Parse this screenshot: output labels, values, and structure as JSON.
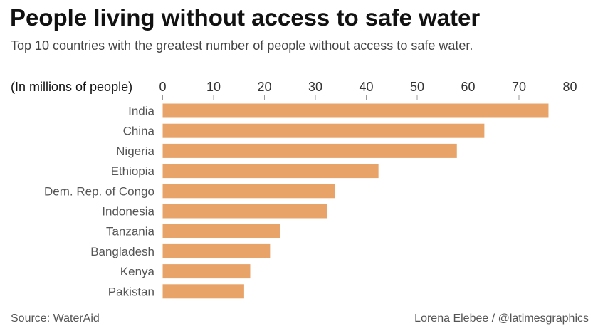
{
  "header": {
    "title": "People living without access to safe water",
    "subtitle": "Top 10 countries with the greatest number of people without access to safe water."
  },
  "footer": {
    "source": "Source: WaterAid",
    "credit": "Lorena Elebee / @latimesgraphics"
  },
  "colors": {
    "bar": "#E8A468",
    "text": "#333333",
    "grid": "#999999"
  },
  "chart_data": {
    "type": "bar",
    "orientation": "horizontal",
    "xlabel": "(In millions of people)",
    "xlim": [
      0,
      80
    ],
    "xticks": [
      0,
      10,
      20,
      30,
      40,
      50,
      60,
      70,
      80
    ],
    "tick_position": "top",
    "grid": false,
    "categories": [
      "India",
      "China",
      "Nigeria",
      "Ethiopia",
      "Dem. Rep. of Congo",
      "Indonesia",
      "Tanzania",
      "Bangladesh",
      "Kenya",
      "Pakistan"
    ],
    "values": [
      75.8,
      63.2,
      57.8,
      42.4,
      33.9,
      32.3,
      23.1,
      21.1,
      17.2,
      16.0
    ]
  }
}
